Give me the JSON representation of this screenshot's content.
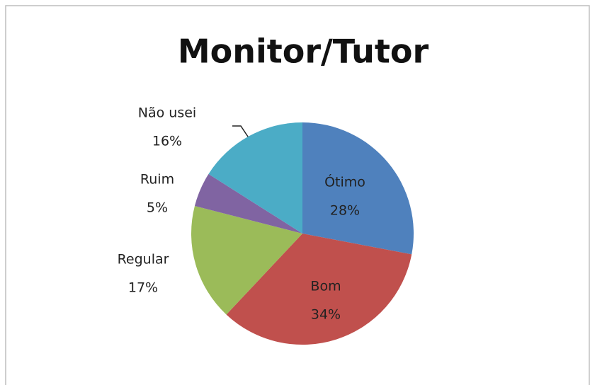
{
  "chart_data": {
    "type": "pie",
    "title": "Monitor/Tutor",
    "categories": [
      "Ótimo",
      "Bom",
      "Regular",
      "Ruim",
      "Não usei"
    ],
    "values": [
      28,
      34,
      17,
      5,
      16
    ],
    "value_labels": [
      "28%",
      "34%",
      "17%",
      "5%",
      "16%"
    ],
    "colors": [
      "#4f81bd",
      "#c0504d",
      "#9bbb59",
      "#8064a2",
      "#4bacc6"
    ]
  }
}
